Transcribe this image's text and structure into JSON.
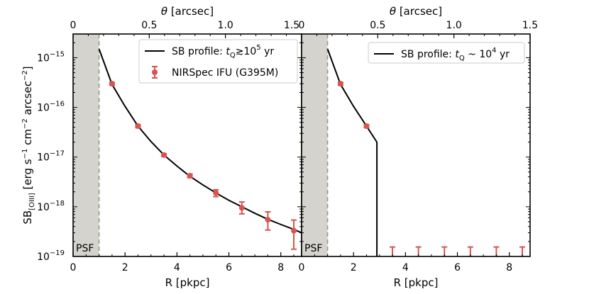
{
  "chart_data": [
    {
      "type": "line",
      "panel": "left",
      "xlabel": "R [pkpc]",
      "top_xlabel_symbol": "θ",
      "top_xlabel_unit": "[arcsec]",
      "ylabel_main": "SB",
      "ylabel_sub": "[OIII]",
      "ylabel_units": [
        {
          "t": " [erg s",
          "sup": ""
        },
        {
          "t": "",
          "sup": "−1"
        },
        {
          "t": " cm",
          "sup": ""
        },
        {
          "t": "",
          "sup": "−2"
        },
        {
          "t": " arcsec",
          "sup": ""
        },
        {
          "t": "",
          "sup": "−2"
        },
        {
          "t": "]",
          "sup": ""
        }
      ],
      "xlim": [
        0,
        8.8
      ],
      "ylim": [
        1e-19,
        3e-15
      ],
      "yscale": "log",
      "xticks": [
        0,
        2,
        4,
        6,
        8
      ],
      "xtick_labels": [
        "0",
        "2",
        "4",
        "6",
        "8"
      ],
      "top_xticks": [
        0,
        0.5,
        1.0,
        1.5
      ],
      "top_xtick_labels": [
        "0",
        "0.5",
        "1.0",
        "1.5"
      ],
      "ytick_exponents": [
        -19,
        -18,
        -17,
        -16,
        -15
      ],
      "psf_region": [
        0,
        1.0
      ],
      "psf_label": "PSF",
      "series": [
        {
          "name": "SB profile: t_Q≳10^5 yr",
          "legend": {
            "prefix": "SB profile: ",
            "var": "t",
            "sub": "Q",
            "rel": "≳10",
            "sup": "5",
            "suffix": " yr"
          },
          "kind": "line",
          "color": "#000000",
          "x": [
            1.0,
            1.5,
            2.0,
            2.5,
            3.0,
            3.5,
            4.0,
            4.5,
            5.0,
            5.5,
            6.0,
            6.5,
            7.0,
            7.5,
            8.0,
            8.5,
            8.8
          ],
          "y": [
            1.5e-15,
            2.9e-16,
            1.05e-16,
            4.2e-17,
            2.05e-17,
            1.1e-17,
            6.6e-18,
            4.1e-18,
            2.75e-18,
            1.9e-18,
            1.35e-18,
            1e-18,
            7.4e-19,
            5.6e-19,
            4.4e-19,
            3.5e-19,
            3e-19
          ]
        },
        {
          "name": "NIRSpec IFU (G395M)",
          "legend": {
            "prefix": "NIRSpec IFU (G395M)"
          },
          "kind": "errorbar",
          "color": "#d9534f",
          "x": [
            1.5,
            2.5,
            3.5,
            4.5,
            5.5,
            6.5,
            7.5,
            8.5
          ],
          "y": [
            3e-16,
            4.2e-17,
            1.1e-17,
            4.2e-18,
            1.9e-18,
            9.5e-19,
            5.5e-19,
            3.3e-19
          ],
          "ylow": [
            2.8e-16,
            3.9e-17,
            1.03e-17,
            3.85e-18,
            1.6e-18,
            7.2e-19,
            3.4e-19,
            1.4e-19
          ],
          "yhigh": [
            3.2e-16,
            4.5e-17,
            1.17e-17,
            4.55e-18,
            2.2e-18,
            1.25e-18,
            7.9e-19,
            5.4e-19
          ]
        }
      ]
    },
    {
      "type": "line",
      "panel": "right",
      "xlabel": "R [pkpc]",
      "top_xlabel_symbol": "θ",
      "top_xlabel_unit": "[arcsec]",
      "xlim": [
        0,
        8.8
      ],
      "ylim": [
        1e-19,
        3e-15
      ],
      "yscale": "log",
      "xticks": [
        0,
        2,
        4,
        6,
        8
      ],
      "xtick_labels": [
        "0",
        "2",
        "4",
        "6",
        "8"
      ],
      "top_xticks": [
        0,
        0.5,
        1.0,
        1.5
      ],
      "top_xtick_labels": [
        "0",
        "0.5",
        "1.0",
        "1.5"
      ],
      "psf_region": [
        0,
        1.0
      ],
      "psf_label": "PSF",
      "series": [
        {
          "name": "SB profile: t_Q~10^4 yr",
          "legend": {
            "prefix": "SB profile: ",
            "var": "t",
            "sub": "Q",
            "rel": " ~ 10",
            "sup": "4",
            "suffix": " yr"
          },
          "kind": "line",
          "color": "#000000",
          "x": [
            1.0,
            1.5,
            2.0,
            2.5,
            2.9,
            2.9
          ],
          "y": [
            1.5e-15,
            2.9e-16,
            1.05e-16,
            4.2e-17,
            2e-17,
            1e-19
          ]
        },
        {
          "name": "NIRSpec IFU (G395M)",
          "kind": "errorbar",
          "color": "#d9534f",
          "x": [
            1.5,
            2.5
          ],
          "y": [
            3e-16,
            4.2e-17
          ],
          "ylow": [
            2.8e-16,
            3.9e-17
          ],
          "yhigh": [
            3.2e-16,
            4.5e-17
          ]
        },
        {
          "name": "upper limits",
          "kind": "upperlimit",
          "color": "#d9534f",
          "x": [
            3.5,
            4.5,
            5.5,
            6.5,
            7.5,
            8.5
          ],
          "y": [
            1.55e-19,
            1.55e-19,
            1.55e-19,
            1.55e-19,
            1.55e-19,
            1.55e-19
          ]
        }
      ]
    }
  ]
}
